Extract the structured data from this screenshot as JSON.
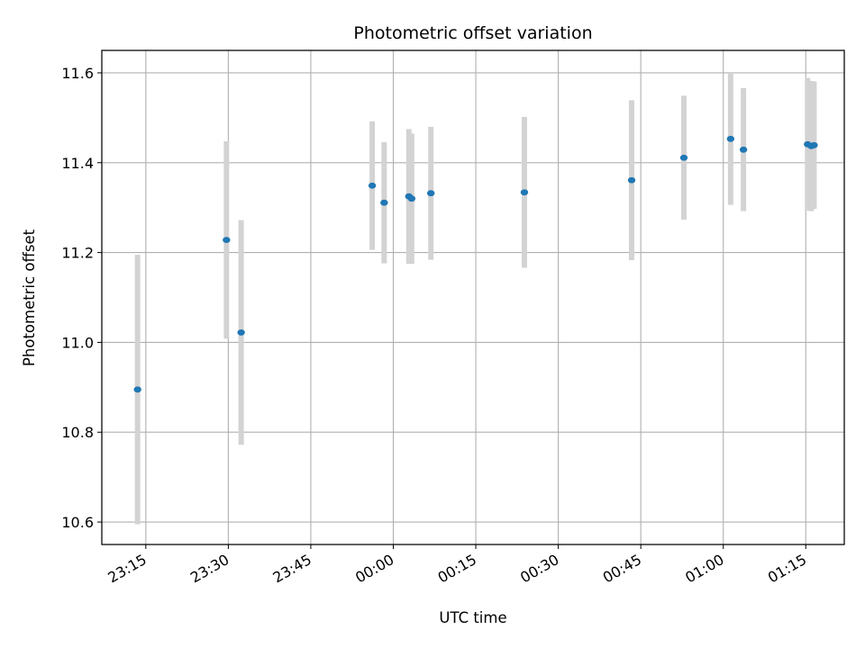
{
  "chart_data": {
    "type": "scatter",
    "title": "Photometric offset variation",
    "xlabel": "UTC time",
    "ylabel": "Photometric offset",
    "x_tick_labels": [
      "23:15",
      "23:30",
      "23:45",
      "00:00",
      "00:15",
      "00:30",
      "00:45",
      "01:00",
      "01:15"
    ],
    "y_ticks": [
      10.6,
      10.8,
      11.0,
      11.2,
      11.4,
      11.6
    ],
    "y_tick_labels": [
      "10.6",
      "10.8",
      "11.0",
      "11.2",
      "11.4",
      "11.6"
    ],
    "xlim": [
      "23:07",
      "01:22"
    ],
    "ylim": [
      10.55,
      11.65
    ],
    "grid": true,
    "colors": {
      "marker": "#1f77b4",
      "errorbar": "#d3d3d3",
      "grid": "#b0b0b0"
    },
    "points": [
      {
        "x": "23:13:30",
        "y": 10.895,
        "yerr": 0.3
      },
      {
        "x": "23:29:40",
        "y": 11.228,
        "yerr": 0.22
      },
      {
        "x": "23:32:20",
        "y": 11.022,
        "yerr": 0.25
      },
      {
        "x": "23:56:10",
        "y": 11.349,
        "yerr": 0.143
      },
      {
        "x": "23:58:20",
        "y": 11.311,
        "yerr": 0.135
      },
      {
        "x": "00:02:50",
        "y": 11.325,
        "yerr": 0.15
      },
      {
        "x": "00:03:20",
        "y": 11.32,
        "yerr": 0.145
      },
      {
        "x": "00:06:50",
        "y": 11.332,
        "yerr": 0.148
      },
      {
        "x": "00:23:50",
        "y": 11.334,
        "yerr": 0.168
      },
      {
        "x": "00:43:20",
        "y": 11.361,
        "yerr": 0.178
      },
      {
        "x": "00:52:50",
        "y": 11.411,
        "yerr": 0.138
      },
      {
        "x": "01:01:20",
        "y": 11.453,
        "yerr": 0.147
      },
      {
        "x": "01:03:40",
        "y": 11.429,
        "yerr": 0.137
      },
      {
        "x": "01:15:20",
        "y": 11.441,
        "yerr": 0.148
      },
      {
        "x": "01:16:00",
        "y": 11.437,
        "yerr": 0.145
      },
      {
        "x": "01:16:30",
        "y": 11.439,
        "yerr": 0.142
      }
    ]
  }
}
